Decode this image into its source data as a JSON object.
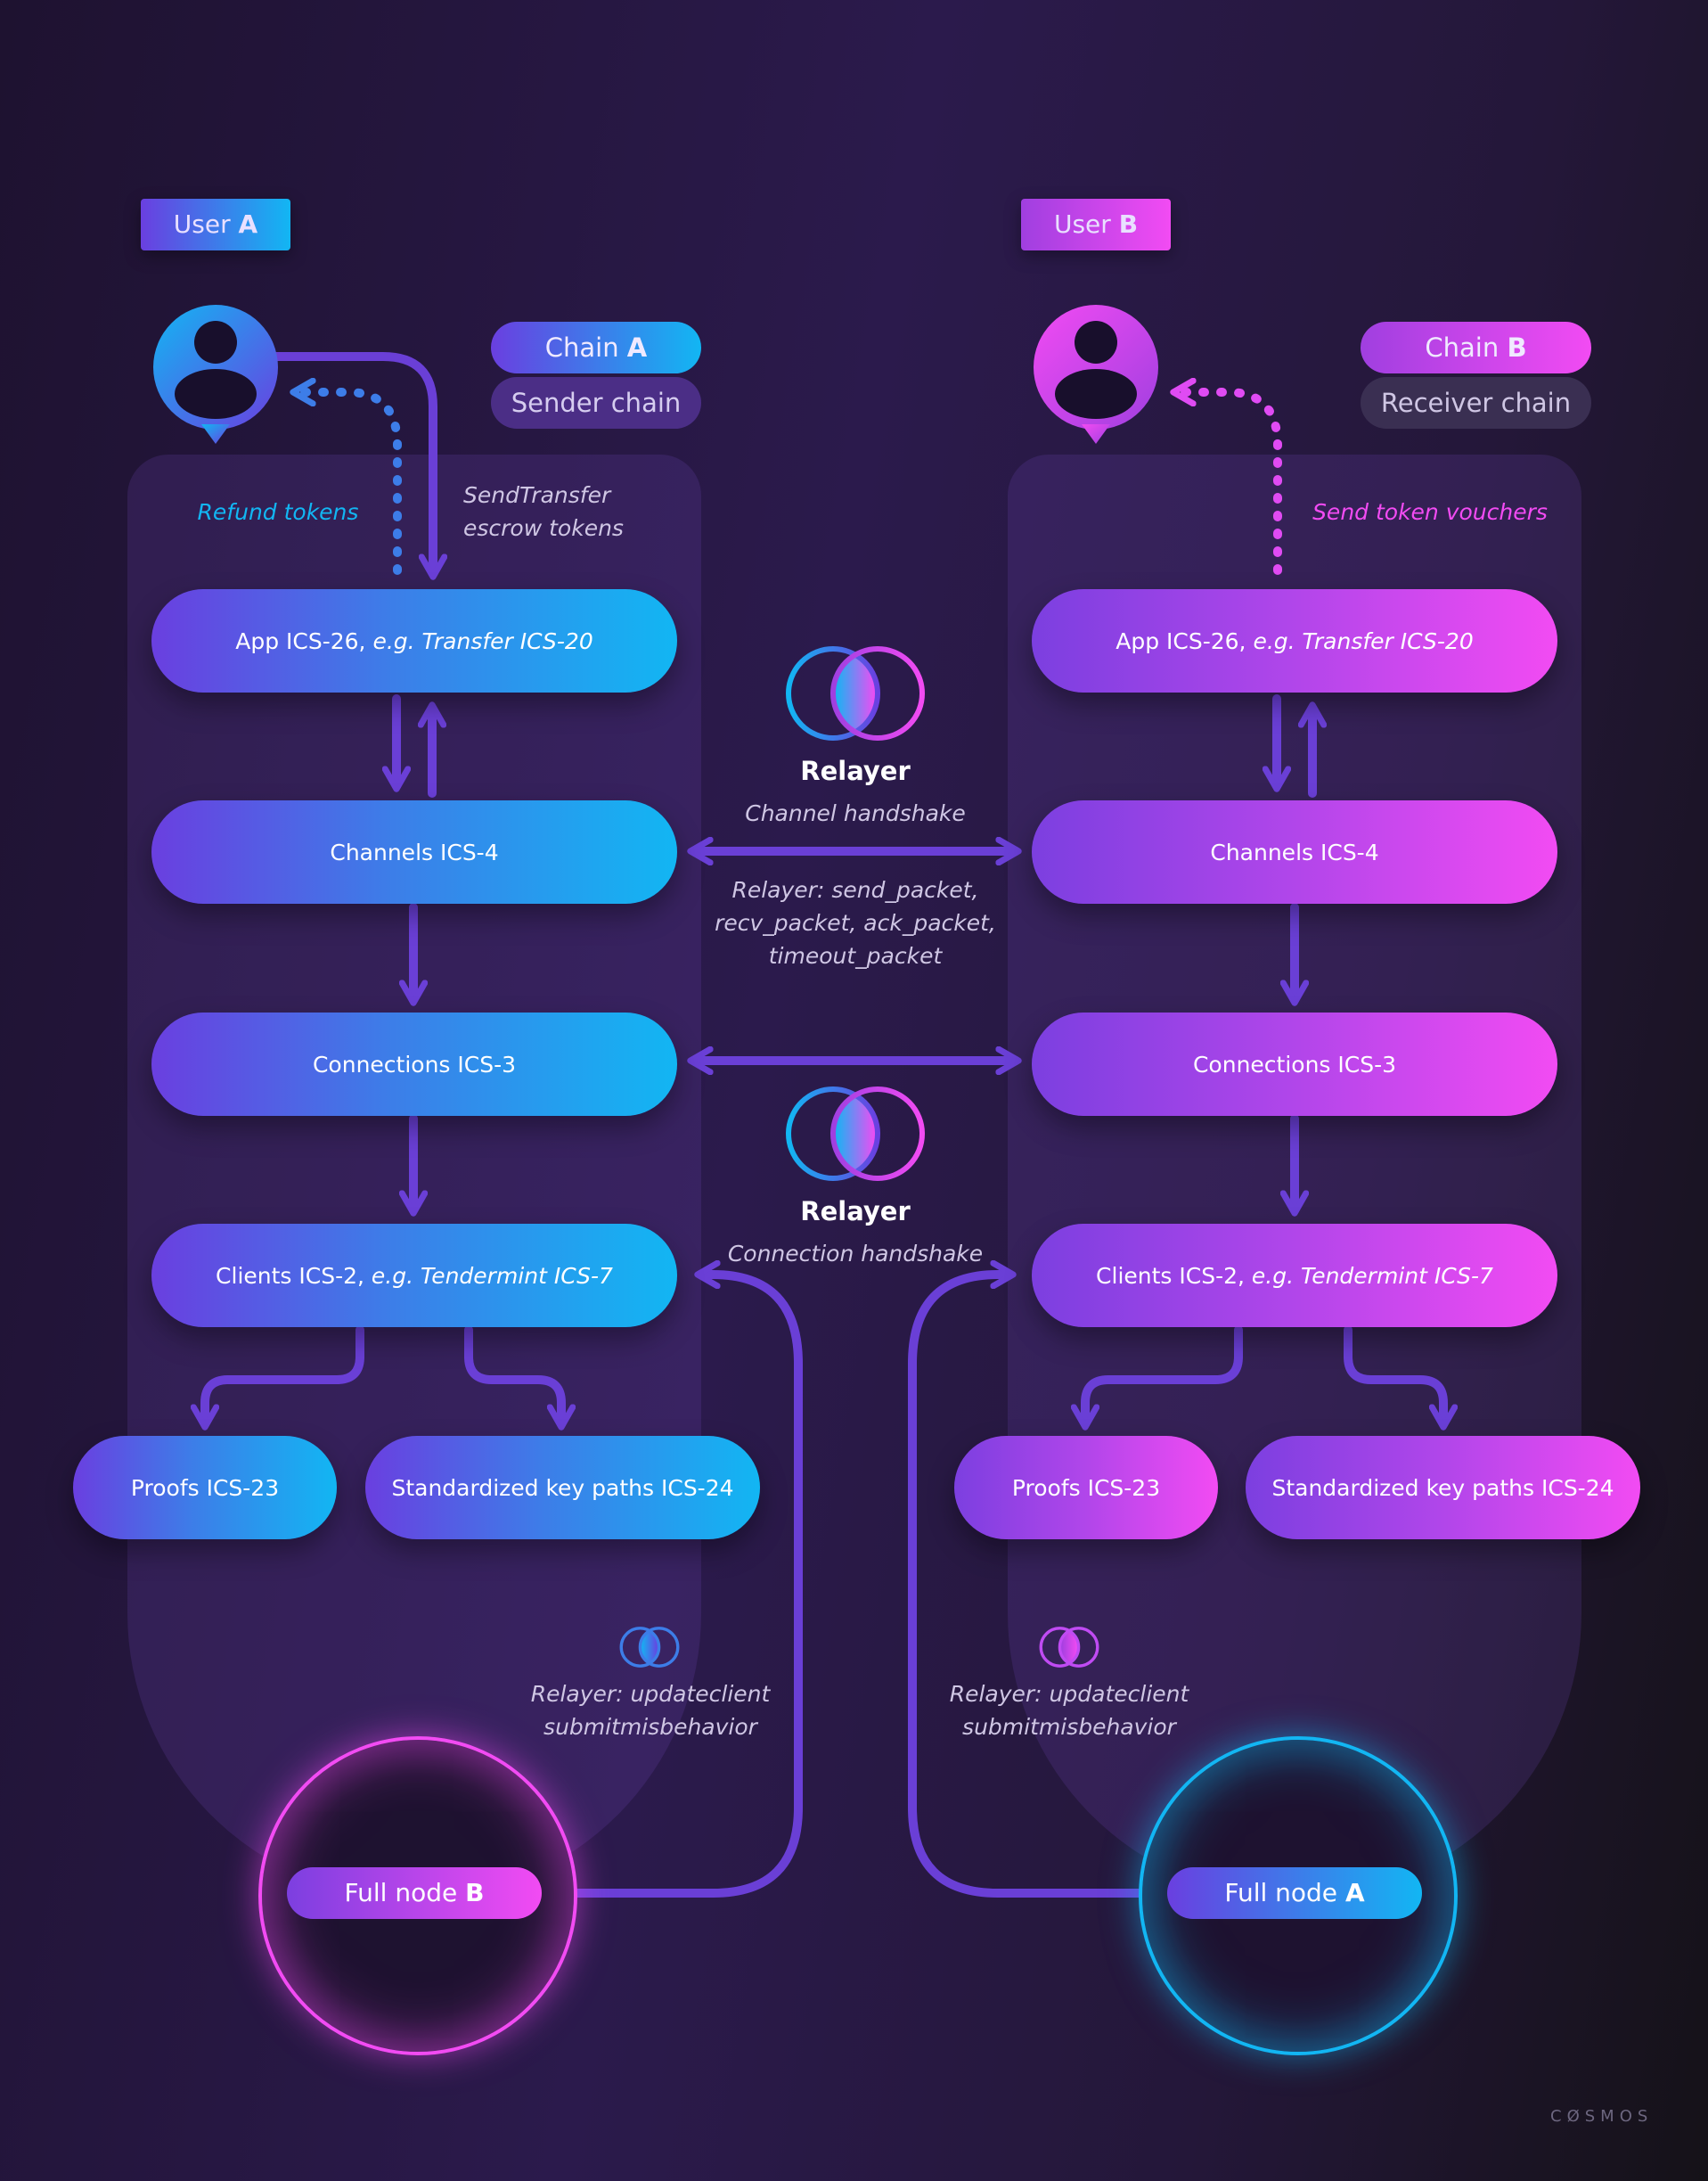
{
  "user_a": {
    "label": "User",
    "letter": "A"
  },
  "user_b": {
    "label": "User",
    "letter": "B"
  },
  "chain_a": {
    "label": "Chain",
    "letter": "A",
    "role": "Sender chain"
  },
  "chain_b": {
    "label": "Chain",
    "letter": "B",
    "role": "Receiver chain"
  },
  "left": {
    "refund_label": "Refund tokens",
    "send_label": "SendTransfer\nescrow tokens",
    "app": {
      "main": "App ICS-26, ",
      "italic": "e.g. Transfer ICS-20"
    },
    "channels": "Channels ICS-4",
    "connections": "Connections ICS-3",
    "clients": {
      "main": "Clients ICS-2, ",
      "italic": "e.g. Tendermint ICS-7"
    },
    "proofs": "Proofs ICS-23",
    "keypaths": "Standardized key paths ICS-24",
    "relayer_update": "Relayer: updateclient\nsubmitmisbehavior",
    "full_node": {
      "label": "Full node",
      "letter": "B"
    }
  },
  "right": {
    "send_vouchers_label": "Send token vouchers",
    "app": {
      "main": "App ICS-26, ",
      "italic": "e.g. Transfer ICS-20"
    },
    "channels": "Channels ICS-4",
    "connections": "Connections ICS-3",
    "clients": {
      "main": "Clients ICS-2, ",
      "italic": "e.g. Tendermint ICS-7"
    },
    "proofs": "Proofs ICS-23",
    "keypaths": "Standardized key paths ICS-24",
    "relayer_update": "Relayer: updateclient\nsubmitmisbehavior",
    "full_node": {
      "label": "Full node",
      "letter": "A"
    }
  },
  "middle": {
    "relayer1_title": "Relayer",
    "relayer1_sub": "Channel handshake",
    "relayer_packets": "Relayer: send_packet,\nrecv_packet, ack_packet,\ntimeout_packet",
    "relayer2_title": "Relayer",
    "relayer2_sub": "Connection handshake"
  },
  "brand": "CØSMOS",
  "colors": {
    "arrow": "#6a3fd6",
    "cyan": "#12b6f3",
    "pink": "#f24bf3",
    "dotted_left": "#3d7de8",
    "dotted_right": "#e04bf3"
  }
}
